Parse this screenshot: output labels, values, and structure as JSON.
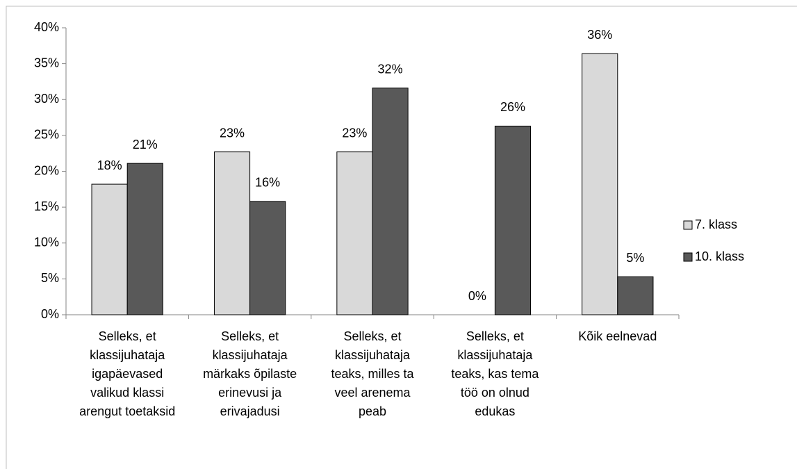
{
  "chart_data": {
    "type": "bar",
    "categories": [
      "Selleks, et klassijuhataja igapäevased valikud klassi arengut toetaksid",
      "Selleks, et klassijuhataja märkaks õpilaste erinevusi ja erivajadusi",
      "Selleks, et klassijuhataja teaks, milles ta veel arenema peab",
      "Selleks, et klassijuhataja teaks, kas tema töö on olnud edukas",
      "Kõik eelnevad"
    ],
    "series": [
      {
        "name": "7. klass",
        "color": "#d9d9d9",
        "values": [
          18.2,
          22.7,
          22.7,
          0,
          36.4
        ],
        "value_labels": [
          "18%",
          "23%",
          "23%",
          "0%",
          "36%"
        ]
      },
      {
        "name": "10. klass",
        "color": "#595959",
        "values": [
          21.1,
          15.8,
          31.6,
          26.3,
          5.3
        ],
        "value_labels": [
          "21%",
          "16%",
          "32%",
          "26%",
          "5%"
        ]
      }
    ],
    "ylim": [
      0,
      40
    ],
    "yticks": [
      {
        "value": 0,
        "label": "0%"
      },
      {
        "value": 5,
        "label": "5%"
      },
      {
        "value": 10,
        "label": "10%"
      },
      {
        "value": 15,
        "label": "15%"
      },
      {
        "value": 20,
        "label": "20%"
      },
      {
        "value": 25,
        "label": "25%"
      },
      {
        "value": 30,
        "label": "30%"
      },
      {
        "value": 35,
        "label": "35%"
      },
      {
        "value": 40,
        "label": "40%"
      }
    ],
    "legend": "right"
  }
}
